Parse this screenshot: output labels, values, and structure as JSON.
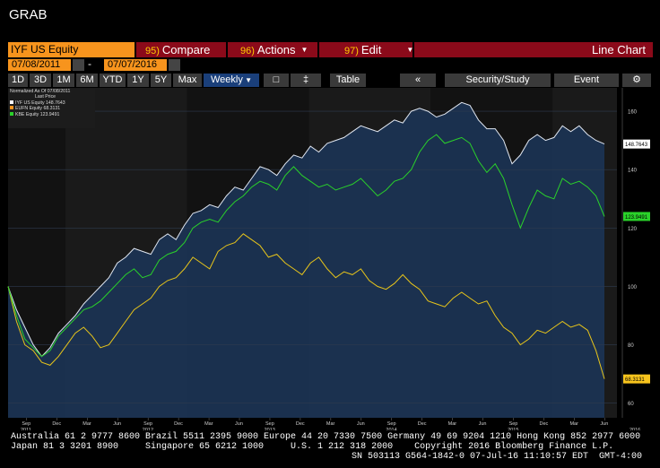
{
  "window": {
    "title": "GRAB"
  },
  "toolbar": {
    "ticker": "IYF US Equity",
    "compare_num": "95)",
    "compare_label": "Compare",
    "actions_num": "96)",
    "actions_label": "Actions",
    "edit_num": "97)",
    "edit_label": "Edit",
    "chart_type": "Line Chart",
    "date_start": "07/08/2011",
    "date_end": "07/07/2016",
    "periods": [
      "1D",
      "3D",
      "1M",
      "6M",
      "YTD",
      "1Y",
      "5Y",
      "Max"
    ],
    "frequency": "Weekly",
    "table_label": "Table",
    "back_label": "«",
    "security_study_label": "Security/Study",
    "event_label": "Event",
    "settings_label": "⚙"
  },
  "legend": {
    "header": "Normalized As Of 07/08/2011",
    "subheader": "Last Price",
    "items": [
      {
        "name": "IYF US Equity",
        "value": "148.7643",
        "color": "#ffffff"
      },
      {
        "name": "EUFN Equity",
        "value": "68.3131",
        "color": "#f7941d"
      },
      {
        "name": "KBE Equity",
        "value": "123.9491",
        "color": "#2ad12a"
      }
    ]
  },
  "chart_data": {
    "type": "line",
    "x_range": [
      "2011-07-08",
      "2016-07-07"
    ],
    "ylim": [
      55,
      168
    ],
    "y_ticks": [
      60,
      80,
      100,
      120,
      140,
      160
    ],
    "x_month_ticks": [
      "Sep",
      "Dec",
      "Mar",
      "Jun",
      "Sep",
      "Dec",
      "Mar",
      "Jun",
      "Sep",
      "Dec",
      "Mar",
      "Jun",
      "Sep",
      "Dec",
      "Mar",
      "Jun",
      "Sep",
      "Dec",
      "Mar",
      "Jun"
    ],
    "x_year_ticks": [
      "2011",
      "2012",
      "2013",
      "2014",
      "2015",
      "2016"
    ],
    "last_values": [
      {
        "label": "148.7643",
        "value": 148.7643,
        "color": "#ffffff",
        "text_color": "#000000"
      },
      {
        "label": "123.9491",
        "value": 123.9491,
        "color": "#2ad12a",
        "text_color": "#000000"
      },
      {
        "label": "68.3131",
        "value": 68.3131,
        "color": "#f7c41d",
        "text_color": "#000000"
      }
    ],
    "series": [
      {
        "name": "IYF US Equity",
        "color": "#e0e6f0",
        "values": [
          100,
          92,
          86,
          80,
          76,
          79,
          84,
          87,
          90,
          94,
          97,
          100,
          103,
          108,
          110,
          113,
          112,
          111,
          116,
          118,
          116,
          121,
          125,
          126,
          128,
          127,
          131,
          134,
          133,
          137,
          141,
          140,
          138,
          142,
          145,
          144,
          148,
          146,
          149,
          150,
          151,
          153,
          155,
          154,
          153,
          155,
          157,
          156,
          160,
          161,
          160,
          158,
          159,
          161,
          163,
          162,
          157,
          154,
          154,
          150,
          142,
          145,
          150,
          152,
          150,
          151,
          155,
          153,
          155,
          152,
          150,
          148.7643
        ]
      },
      {
        "name": "EUFN Equity",
        "color": "#e8c51a",
        "values": [
          100,
          88,
          80,
          78,
          74,
          73,
          76,
          80,
          84,
          86,
          83,
          79,
          80,
          84,
          88,
          92,
          94,
          96,
          100,
          102,
          103,
          106,
          110,
          108,
          106,
          112,
          114,
          115,
          118,
          116,
          114,
          110,
          111,
          108,
          106,
          104,
          108,
          110,
          106,
          103,
          105,
          104,
          106,
          102,
          100,
          99,
          101,
          104,
          101,
          99,
          95,
          94,
          93,
          96,
          98,
          96,
          94,
          95,
          90,
          86,
          84,
          80,
          82,
          85,
          84,
          86,
          88,
          86,
          87,
          85,
          78,
          68.3131
        ]
      },
      {
        "name": "KBE Equity",
        "color": "#2ad12a",
        "values": [
          100,
          90,
          82,
          79,
          76,
          78,
          83,
          86,
          89,
          92,
          93,
          95,
          98,
          101,
          104,
          106,
          103,
          104,
          109,
          111,
          112,
          115,
          120,
          122,
          123,
          122,
          126,
          129,
          131,
          134,
          136,
          135,
          133,
          138,
          141,
          138,
          136,
          134,
          135,
          133,
          134,
          135,
          137,
          134,
          131,
          133,
          136,
          137,
          140,
          146,
          150,
          152,
          149,
          150,
          151,
          149,
          143,
          139,
          142,
          137,
          128,
          120,
          127,
          133,
          131,
          130,
          137,
          135,
          136,
          134,
          131,
          123.9491
        ]
      }
    ]
  }
}
